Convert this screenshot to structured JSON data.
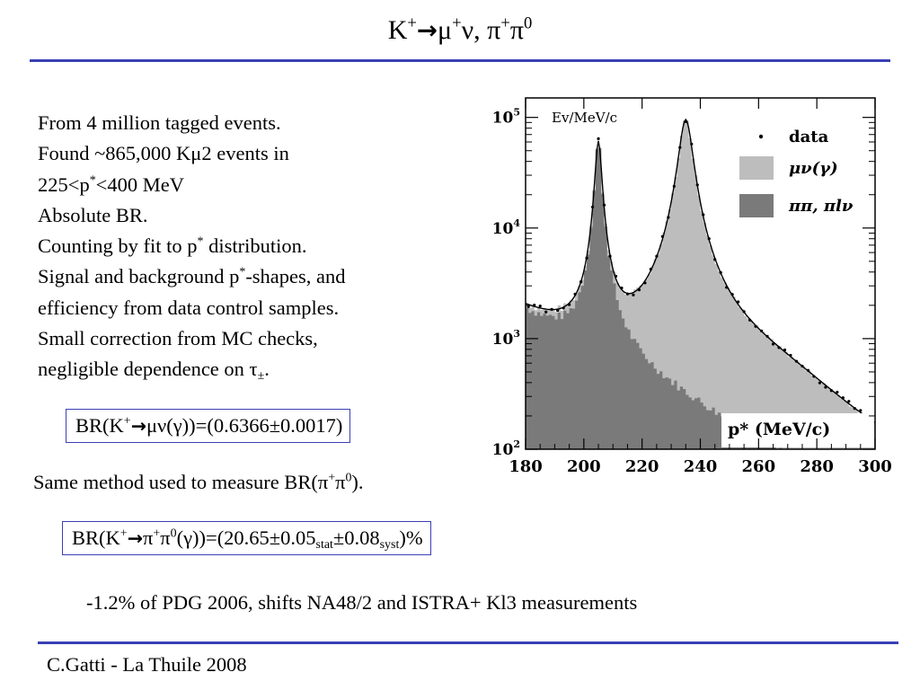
{
  "slide": {
    "title_parts": [
      "K",
      "+",
      "→",
      "μ",
      "+",
      "ν, π",
      "+",
      "π",
      "0"
    ],
    "bullets": [
      {
        "text": "From 4 million tagged events."
      },
      {
        "text": "Found ~865,000 Kμ2 events in"
      },
      {
        "pre": "225<p",
        "sup": "*",
        "post": "<400 MeV"
      },
      {
        "text": "Absolute BR."
      },
      {
        "pre": "Counting by fit to p",
        "sup": "*",
        "post": " distribution."
      },
      {
        "pre": "Signal and background p",
        "sup": "*",
        "post": "-shapes, and"
      },
      {
        "text": "efficiency from data control samples."
      },
      {
        "text": "Small correction from MC checks,"
      },
      {
        "pre": "negligible dependence on τ",
        "sub": "±",
        "post": "."
      }
    ],
    "result_box_1": {
      "pre": "BR(K",
      "sup1": "+",
      "arrow": "→",
      "post": "μν(γ))=(0.6366±0.0017)"
    },
    "same_method": {
      "pre": "Same method used to measure BR(π",
      "sup1": "+",
      "mid": "π",
      "sup2": "0",
      "post": ")."
    },
    "result_box_2": {
      "pre": "BR(K",
      "sup1": "+",
      "arrow": "→",
      "pi1": "π",
      "sup2": "+",
      "pi2": "π",
      "sup3": "0",
      "mid": "(γ))=(20.65±0.05",
      "sub1": "stat",
      "mid2": "±0.08",
      "sub2": "syst",
      "post": ")%"
    },
    "note": "-1.2% of PDG 2006, shifts NA48/2 and ISTRA+ Kl3 measurements",
    "footer": "C.Gatti - La Thuile 2008",
    "accent_color": "#3a3fb5"
  },
  "chart_data": {
    "type": "histogram",
    "y_unit_label": "Ev/MeV/c",
    "xlabel": "p*  (MeV/c)",
    "xlim": [
      180,
      300
    ],
    "ylim": [
      100,
      150000
    ],
    "y_scale": "log",
    "x_ticks": [
      "180",
      "200",
      "220",
      "240",
      "260",
      "280",
      "300"
    ],
    "y_ticks": [
      {
        "value": 100,
        "base": "10",
        "exp": "2"
      },
      {
        "value": 1000,
        "base": "10",
        "exp": "3"
      },
      {
        "value": 10000,
        "base": "10",
        "exp": "4"
      },
      {
        "value": 100000,
        "base": "10",
        "exp": "5"
      }
    ],
    "legend": [
      {
        "kind": "marker",
        "label": "data"
      },
      {
        "kind": "fill",
        "label": "μν(γ)",
        "color": "#bdbdbd"
      },
      {
        "kind": "fill",
        "label": "ππ, πlν",
        "color": "#7a7a7a"
      }
    ],
    "colors": {
      "signal": "#bdbdbd",
      "background": "#7a7a7a",
      "curve": "#000000"
    },
    "series": [
      {
        "name": "ππ, πlν",
        "peak_x": 205,
        "peak_y": 60000
      },
      {
        "name": "μν(γ)",
        "peak_x": 235,
        "peak_y": 95000
      },
      {
        "name": "data"
      }
    ]
  }
}
